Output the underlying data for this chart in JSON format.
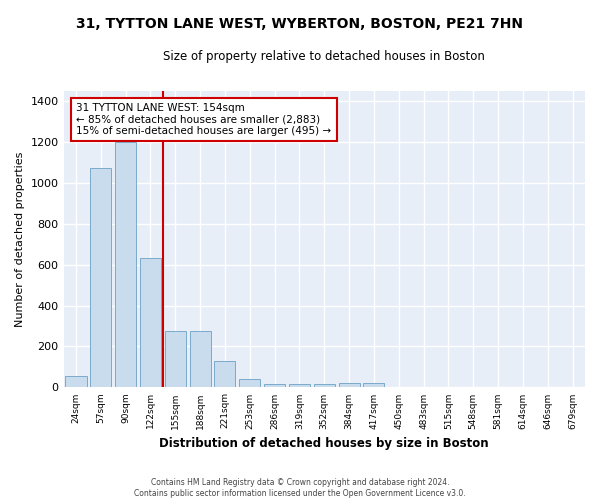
{
  "title": "31, TYTTON LANE WEST, WYBERTON, BOSTON, PE21 7HN",
  "subtitle": "Size of property relative to detached houses in Boston",
  "xlabel": "Distribution of detached houses by size in Boston",
  "ylabel": "Number of detached properties",
  "bar_color": "#c9dcee",
  "bar_edge_color": "#7aaacb",
  "background_color": "#e8eef8",
  "grid_color": "#ffffff",
  "fig_facecolor": "#ffffff",
  "categories": [
    "24sqm",
    "57sqm",
    "90sqm",
    "122sqm",
    "155sqm",
    "188sqm",
    "221sqm",
    "253sqm",
    "286sqm",
    "319sqm",
    "352sqm",
    "384sqm",
    "417sqm",
    "450sqm",
    "483sqm",
    "515sqm",
    "548sqm",
    "581sqm",
    "614sqm",
    "646sqm",
    "679sqm"
  ],
  "values": [
    55,
    1070,
    1200,
    630,
    275,
    275,
    130,
    40,
    18,
    18,
    18,
    20,
    20,
    0,
    0,
    0,
    0,
    0,
    0,
    0,
    0
  ],
  "ylim": [
    0,
    1450
  ],
  "yticks": [
    0,
    200,
    400,
    600,
    800,
    1000,
    1200,
    1400
  ],
  "property_line_label": "31 TYTTON LANE WEST: 154sqm",
  "annotation_line1": "← 85% of detached houses are smaller (2,883)",
  "annotation_line2": "15% of semi-detached houses are larger (495) →",
  "annotation_box_facecolor": "#ffffff",
  "annotation_box_edgecolor": "#cc0000",
  "property_line_color": "#cc0000",
  "footer_line1": "Contains HM Land Registry data © Crown copyright and database right 2024.",
  "footer_line2": "Contains public sector information licensed under the Open Government Licence v3.0."
}
